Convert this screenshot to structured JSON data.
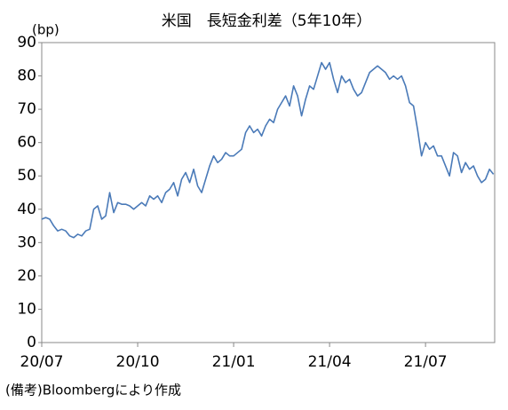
{
  "chart_data": {
    "type": "line",
    "title": "米国　長短金利差（5年10年）",
    "y_label": "(bp)",
    "note": "(備考)Bloombergにより作成",
    "categories": [
      "20/07",
      null,
      null,
      null,
      null,
      null,
      null,
      null,
      null,
      null,
      null,
      null,
      null,
      null,
      null,
      null,
      null,
      null,
      null,
      null,
      null,
      null,
      null,
      null,
      "20/10",
      null,
      null,
      null,
      null,
      null,
      null,
      null,
      null,
      null,
      null,
      null,
      null,
      null,
      null,
      null,
      null,
      null,
      null,
      null,
      null,
      null,
      null,
      null,
      "21/01",
      null,
      null,
      null,
      null,
      null,
      null,
      null,
      null,
      null,
      null,
      null,
      null,
      null,
      null,
      null,
      null,
      null,
      null,
      null,
      null,
      null,
      null,
      null,
      "21/04",
      null,
      null,
      null,
      null,
      null,
      null,
      null,
      null,
      null,
      null,
      null,
      null,
      null,
      null,
      null,
      null,
      null,
      null,
      null,
      null,
      null,
      null,
      null,
      "21/07",
      null,
      null,
      null,
      null,
      null,
      null,
      null,
      null,
      null,
      null,
      null,
      null,
      null,
      null,
      null,
      null,
      null
    ],
    "values": [
      37,
      37.5,
      37,
      35,
      33.5,
      34,
      33.5,
      32,
      31.5,
      32.5,
      32,
      33.5,
      34,
      40,
      41,
      37,
      38,
      45,
      39,
      42,
      41.5,
      41.5,
      41,
      40,
      41,
      42,
      41,
      44,
      43,
      44,
      42,
      45,
      46,
      48,
      44,
      49,
      51,
      48,
      52,
      47,
      45,
      49,
      53,
      56,
      54,
      55,
      57,
      56,
      56,
      57,
      58,
      63,
      65,
      63,
      64,
      62,
      65,
      67,
      66,
      70,
      72,
      74,
      71,
      77,
      74,
      68,
      73,
      77,
      76,
      80,
      84,
      82,
      84,
      79,
      75,
      80,
      78,
      79,
      76,
      74,
      75,
      78,
      81,
      82,
      83,
      82,
      81,
      79,
      80,
      79,
      80,
      77,
      72,
      71,
      64,
      56,
      60,
      58,
      59,
      56,
      56,
      53,
      50,
      57,
      56,
      51,
      54,
      52,
      53,
      50,
      48,
      49,
      52,
      50.5
    ],
    "color": "#4a7ab8",
    "ylim": [
      0,
      90
    ],
    "yticks": [
      0,
      10,
      20,
      30,
      40,
      50,
      60,
      70,
      80,
      90
    ],
    "grid": false
  }
}
